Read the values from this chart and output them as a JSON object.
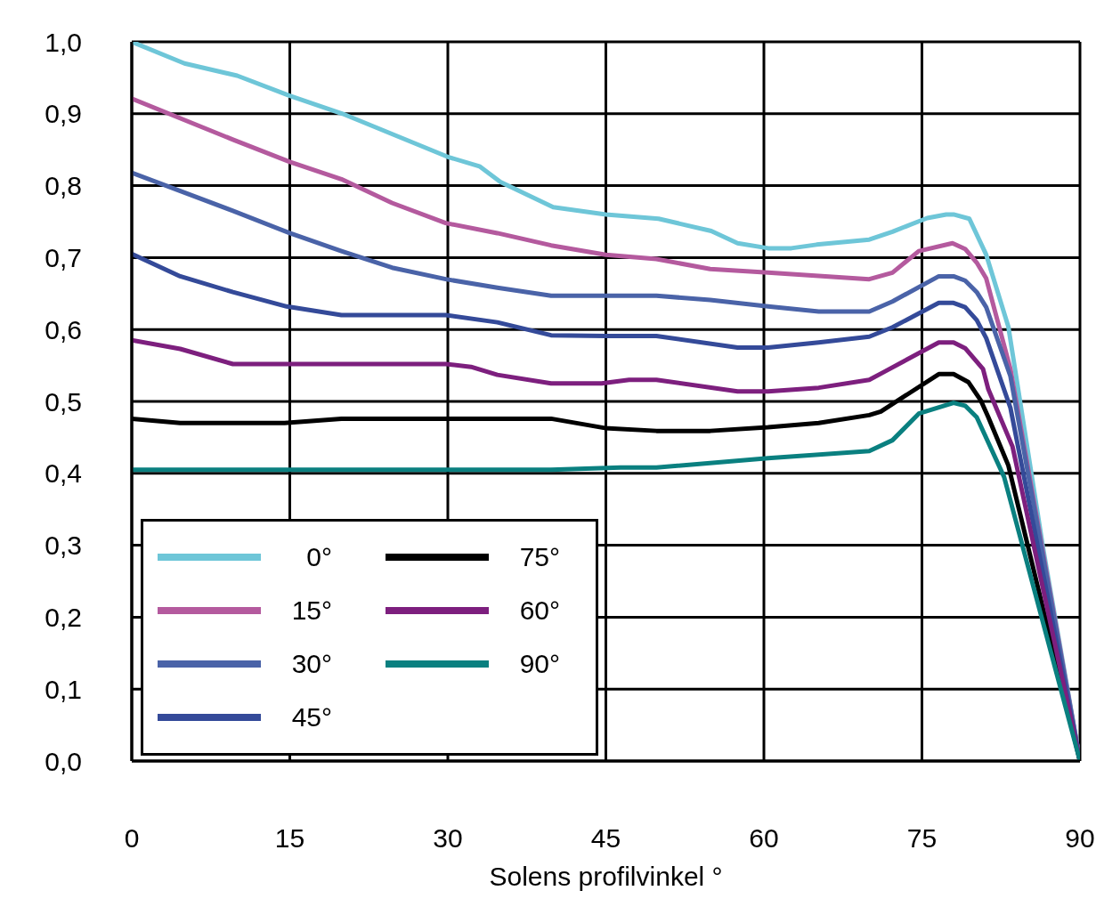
{
  "chart_data": {
    "type": "line",
    "xlabel": "Solens profilvinkel °",
    "xlim": [
      0,
      90
    ],
    "xticks": [
      0,
      15,
      30,
      45,
      60,
      75,
      90
    ],
    "ylim": [
      0,
      1
    ],
    "yticks": [
      {
        "value": 0,
        "label": "0,0"
      },
      {
        "value": 0.1,
        "label": "0,1"
      },
      {
        "value": 0.2,
        "label": "0,2"
      },
      {
        "value": 0.3,
        "label": "0,3"
      },
      {
        "value": 0.4,
        "label": "0,4"
      },
      {
        "value": 0.5,
        "label": "0,5"
      },
      {
        "value": 0.6,
        "label": "0,6"
      },
      {
        "value": 0.7,
        "label": "0,7"
      },
      {
        "value": 0.8,
        "label": "0,8"
      },
      {
        "value": 0.9,
        "label": "0,9"
      },
      {
        "value": 1,
        "label": "1,0"
      }
    ],
    "grid": true,
    "legend": "bottom left",
    "series": [
      {
        "name": "0°",
        "color": "#6ec6d8",
        "x": [
          0,
          5,
          10,
          15,
          20,
          25,
          30,
          33,
          35,
          40,
          45,
          50,
          55,
          57.5,
          60.4,
          62.6,
          65,
          70,
          72.2,
          75.5,
          77.3,
          78,
          79.5,
          81.1,
          83.2,
          86.5,
          90
        ],
        "values": [
          1.0,
          0.97,
          0.953,
          0.925,
          0.9,
          0.87,
          0.84,
          0.827,
          0.805,
          0.77,
          0.76,
          0.754,
          0.737,
          0.72,
          0.713,
          0.713,
          0.718,
          0.725,
          0.736,
          0.755,
          0.76,
          0.76,
          0.754,
          0.704,
          0.604,
          0.296,
          0
        ]
      },
      {
        "name": "15°",
        "color": "#b45a9e",
        "x": [
          0,
          9.6,
          15,
          19.9,
          24.7,
          29.8,
          34.7,
          39.8,
          45,
          49.8,
          54.9,
          60.4,
          70,
          72.2,
          74.7,
          77.9,
          79.1,
          80.2,
          81.1,
          83.4,
          90
        ],
        "values": [
          0.921,
          0.864,
          0.833,
          0.809,
          0.776,
          0.748,
          0.734,
          0.717,
          0.704,
          0.698,
          0.684,
          0.679,
          0.67,
          0.679,
          0.709,
          0.72,
          0.712,
          0.693,
          0.671,
          0.545,
          0
        ]
      },
      {
        "name": "30°",
        "color": "#4a63a8",
        "x": [
          0,
          9.6,
          15,
          19.9,
          24.7,
          29.8,
          34.7,
          39.8,
          45,
          49.8,
          54.9,
          60.4,
          65.2,
          70,
          72.2,
          76.6,
          78,
          79.1,
          80.2,
          81.1,
          83.4,
          90
        ],
        "values": [
          0.818,
          0.765,
          0.734,
          0.709,
          0.686,
          0.67,
          0.658,
          0.647,
          0.647,
          0.647,
          0.641,
          0.632,
          0.625,
          0.625,
          0.639,
          0.674,
          0.674,
          0.668,
          0.652,
          0.631,
          0.535,
          0
        ]
      },
      {
        "name": "45°",
        "color": "#344a99",
        "x": [
          0,
          4.6,
          9.6,
          14.7,
          19.9,
          29.8,
          34.7,
          39.8,
          45,
          49.8,
          57.5,
          60.4,
          65.2,
          70,
          72.2,
          76.6,
          78,
          79.1,
          80.2,
          81.1,
          83.4,
          90
        ],
        "values": [
          0.705,
          0.674,
          0.652,
          0.632,
          0.62,
          0.62,
          0.61,
          0.592,
          0.591,
          0.591,
          0.575,
          0.575,
          0.582,
          0.59,
          0.603,
          0.637,
          0.637,
          0.631,
          0.613,
          0.588,
          0.491,
          0
        ]
      },
      {
        "name": "75°",
        "color": "#000000",
        "x": [
          0,
          4.6,
          14.5,
          19.9,
          39.8,
          44.9,
          49.8,
          54.9,
          60.4,
          65.2,
          70,
          71.1,
          76.6,
          78,
          79.4,
          80.6,
          81.3,
          83.2,
          90
        ],
        "values": [
          0.476,
          0.47,
          0.47,
          0.476,
          0.476,
          0.463,
          0.459,
          0.459,
          0.464,
          0.47,
          0.481,
          0.486,
          0.538,
          0.538,
          0.527,
          0.501,
          0.478,
          0.411,
          0
        ]
      },
      {
        "name": "60°",
        "color": "#7d1f7e",
        "x": [
          0,
          4.6,
          9.6,
          29.8,
          32.2,
          34.7,
          39.8,
          44.6,
          47.2,
          49.8,
          57.5,
          60.4,
          65.2,
          70,
          71.4,
          76.6,
          78,
          79.1,
          80.8,
          81.3,
          83.6,
          90
        ],
        "values": [
          0.585,
          0.573,
          0.552,
          0.552,
          0.548,
          0.537,
          0.525,
          0.525,
          0.53,
          0.53,
          0.514,
          0.514,
          0.519,
          0.53,
          0.541,
          0.582,
          0.582,
          0.574,
          0.545,
          0.517,
          0.437,
          0
        ]
      },
      {
        "name": "90°",
        "color": "#0a8080",
        "x": [
          0,
          39.8,
          46.4,
          49.8,
          60.4,
          70,
          72.2,
          74.7,
          78,
          79.1,
          80.2,
          82.8,
          90
        ],
        "values": [
          0.405,
          0.405,
          0.408,
          0.408,
          0.421,
          0.431,
          0.446,
          0.483,
          0.498,
          0.494,
          0.478,
          0.395,
          0
        ]
      }
    ]
  }
}
